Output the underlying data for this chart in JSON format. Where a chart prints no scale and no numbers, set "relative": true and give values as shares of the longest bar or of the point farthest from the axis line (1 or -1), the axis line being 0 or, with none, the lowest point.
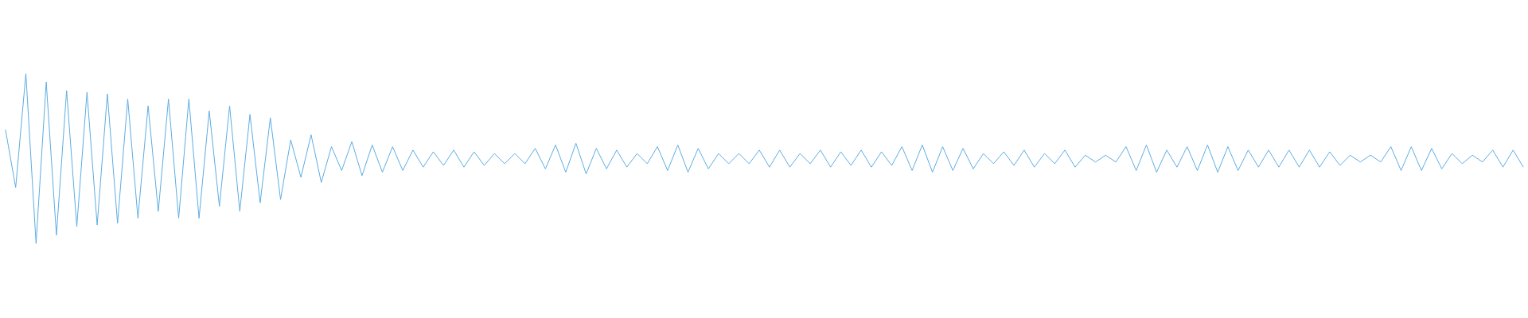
{
  "chart_data": {
    "type": "line",
    "relative": true,
    "grid": false,
    "marker": "none",
    "line_style": "solid",
    "categories": [
      null,
      null,
      null,
      null,
      null,
      null,
      null,
      null,
      null,
      null,
      null,
      null,
      null,
      null,
      null,
      null,
      null,
      null,
      null,
      null,
      null,
      null,
      null,
      null,
      null,
      null,
      null,
      null,
      null,
      null,
      null,
      null,
      null,
      null,
      null,
      null,
      null,
      null,
      null,
      null,
      null,
      null,
      null,
      null,
      null,
      null,
      null,
      null,
      null,
      null,
      null,
      null,
      null,
      null,
      null,
      null,
      null,
      null,
      null,
      null,
      null,
      null,
      null,
      null,
      null,
      null,
      null,
      null,
      null,
      null,
      null,
      null,
      null,
      null,
      null,
      null,
      null,
      null,
      null,
      null,
      null,
      null,
      null,
      null,
      null,
      null,
      null,
      null,
      null,
      null,
      null,
      null,
      null,
      null,
      null,
      null,
      null,
      null,
      null,
      null,
      null,
      null,
      null,
      null,
      null,
      null,
      null,
      null,
      null,
      null,
      null,
      null,
      null,
      null,
      null,
      null,
      null,
      null,
      null,
      null,
      null,
      null,
      null,
      null,
      null,
      null,
      null,
      null,
      null,
      null,
      null,
      null,
      null,
      null,
      null,
      null,
      null,
      null,
      null,
      null,
      null,
      null,
      null,
      null,
      null,
      null,
      null,
      null,
      null,
      null
    ],
    "series": [
      {
        "color": "#5dade2",
        "values": [
          0.67,
          0.33,
          1,
          0,
          0.95,
          0.05,
          0.9,
          0.1,
          0.89,
          0.11,
          0.88,
          0.12,
          0.85,
          0.15,
          0.81,
          0.19,
          0.85,
          0.15,
          0.85,
          0.15,
          0.78,
          0.22,
          0.81,
          0.19,
          0.76,
          0.24,
          0.74,
          0.26,
          0.61,
          0.39,
          0.64,
          0.36,
          0.57,
          0.43,
          0.6,
          0.4,
          0.58,
          0.42,
          0.57,
          0.43,
          0.55,
          0.45,
          0.54,
          0.46,
          0.55,
          0.45,
          0.54,
          0.46,
          0.53,
          0.47,
          0.53,
          0.47,
          0.56,
          0.44,
          0.58,
          0.42,
          0.59,
          0.41,
          0.56,
          0.44,
          0.55,
          0.45,
          0.53,
          0.47,
          0.57,
          0.43,
          0.58,
          0.42,
          0.56,
          0.44,
          0.53,
          0.47,
          0.53,
          0.47,
          0.55,
          0.45,
          0.55,
          0.45,
          0.53,
          0.47,
          0.55,
          0.45,
          0.54,
          0.46,
          0.55,
          0.45,
          0.54,
          0.46,
          0.57,
          0.43,
          0.58,
          0.42,
          0.57,
          0.43,
          0.56,
          0.44,
          0.53,
          0.47,
          0.54,
          0.46,
          0.55,
          0.45,
          0.53,
          0.47,
          0.55,
          0.45,
          0.52,
          0.48,
          0.52,
          0.48,
          0.57,
          0.43,
          0.58,
          0.42,
          0.55,
          0.45,
          0.57,
          0.43,
          0.58,
          0.42,
          0.57,
          0.43,
          0.55,
          0.45,
          0.55,
          0.45,
          0.55,
          0.45,
          0.55,
          0.45,
          0.54,
          0.46,
          0.52,
          0.48,
          0.52,
          0.48,
          0.57,
          0.43,
          0.57,
          0.43,
          0.56,
          0.44,
          0.53,
          0.47,
          0.52,
          0.48,
          0.55,
          0.45,
          0.55,
          0.45
        ]
      }
    ]
  }
}
